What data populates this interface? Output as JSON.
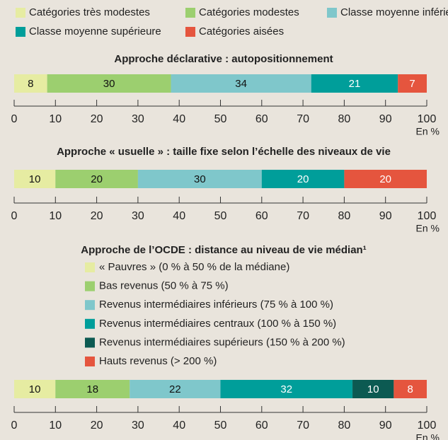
{
  "chart_data": [
    {
      "type": "stacked_bar",
      "title": "Approche déclarative : autopositionnement",
      "series": [
        {
          "name": "Catégories très modestes",
          "color": "#e6eca2",
          "values": [
            8
          ]
        },
        {
          "name": "Catégories modestes",
          "color": "#9ccf6f",
          "values": [
            30
          ]
        },
        {
          "name": "Classe moyenne inférieure",
          "color": "#7fc7cb",
          "values": [
            34
          ]
        },
        {
          "name": "Classe moyenne supérieure",
          "color": "#009e9a",
          "values": [
            21
          ]
        },
        {
          "name": "Catégories aisées",
          "color": "#e5553e",
          "values": [
            7
          ]
        }
      ],
      "xlim": [
        0,
        100
      ],
      "xticks": [
        0,
        10,
        20,
        30,
        40,
        50,
        60,
        70,
        80,
        90,
        100
      ],
      "xlabel": "En %",
      "legend": "top"
    },
    {
      "type": "stacked_bar",
      "title": "Approche « usuelle » : taille fixe selon l’échelle des niveaux de vie",
      "series": [
        {
          "color": "#e6eca2",
          "values": [
            10
          ]
        },
        {
          "color": "#9ccf6f",
          "values": [
            20
          ]
        },
        {
          "color": "#7fc7cb",
          "values": [
            30
          ]
        },
        {
          "color": "#009e9a",
          "values": [
            20
          ]
        },
        {
          "color": "#e5553e",
          "values": [
            20
          ]
        }
      ],
      "xlim": [
        0,
        100
      ],
      "xticks": [
        0,
        10,
        20,
        30,
        40,
        50,
        60,
        70,
        80,
        90,
        100
      ],
      "xlabel": "En %"
    },
    {
      "type": "stacked_bar",
      "title": "Approche de l’OCDE : distance au niveau de vie médian¹",
      "series": [
        {
          "name": "« Pauvres » (0 % à 50 % de la médiane)",
          "color": "#e6eca2",
          "values": [
            10
          ]
        },
        {
          "name": "Bas revenus (50 % à 75 %)",
          "color": "#9ccf6f",
          "values": [
            18
          ]
        },
        {
          "name": "Revenus intermédiaires inférieurs (75 % à 100 %)",
          "color": "#7fc7cb",
          "values": [
            22
          ]
        },
        {
          "name": "Revenus intermédiaires centraux (100 % à 150 %)",
          "color": "#009e9a",
          "values": [
            32
          ]
        },
        {
          "name": "Revenus intermédiaires supérieurs (150 % à 200 %)",
          "color": "#0c5a52",
          "values": [
            10
          ]
        },
        {
          "name": "Hauts revenus (> 200 %)",
          "color": "#e5553e",
          "values": [
            8
          ]
        }
      ],
      "xlim": [
        0,
        100
      ],
      "xticks": [
        0,
        10,
        20,
        30,
        40,
        50,
        60,
        70,
        80,
        90,
        100
      ],
      "xlabel": "En %",
      "legend": "above-bar"
    }
  ]
}
